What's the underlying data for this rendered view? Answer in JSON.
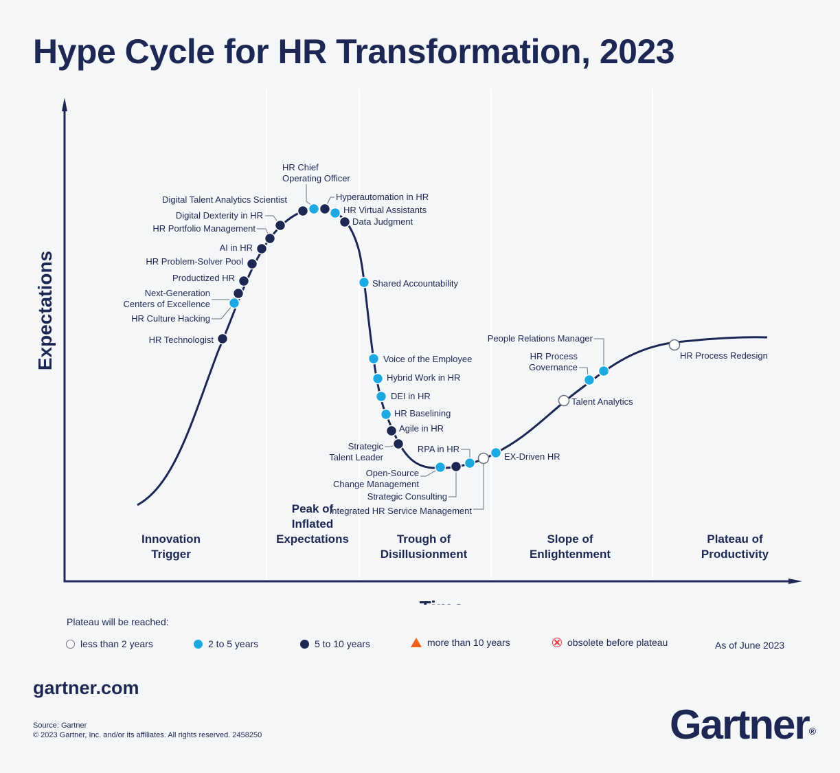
{
  "title": "Hype Cycle for HR Transformation, 2023",
  "chart_data": {
    "type": "hype-cycle",
    "title": "Hype Cycle for HR Transformation, 2023",
    "xlabel": "Time",
    "ylabel": "Expectations",
    "phases": [
      [
        "Innovation",
        "Trigger"
      ],
      [
        "Peak of",
        "Inflated",
        "Expectations"
      ],
      [
        "Trough of",
        "Disillusionment"
      ],
      [
        "Slope of",
        "Enlightenment"
      ],
      [
        "Plateau of",
        "Productivity"
      ]
    ],
    "categories": [
      "less than 2 years",
      "2 to 5 years",
      "5 to 10 years",
      "more than 10 years",
      "obsolete before plateau"
    ],
    "colors": {
      "navy": "#1d2753",
      "cyan": "#1ca9e1",
      "orange": "#f0611f",
      "red": "#e0393e",
      "white": "#ffffff"
    },
    "points": [
      {
        "name": "HR Technologist",
        "plateau": "5 to 10 years"
      },
      {
        "name": "HR Culture Hacking",
        "plateau": "2 to 5 years"
      },
      {
        "name": "Next-Generation Centers of Excellence",
        "plateau": "5 to 10 years"
      },
      {
        "name": "Productized HR",
        "plateau": "5 to 10 years"
      },
      {
        "name": "HR Problem-Solver Pool",
        "plateau": "5 to 10 years"
      },
      {
        "name": "AI in HR",
        "plateau": "5 to 10 years"
      },
      {
        "name": "HR Portfolio Management",
        "plateau": "5 to 10 years"
      },
      {
        "name": "Digital Dexterity in HR",
        "plateau": "5 to 10 years"
      },
      {
        "name": "Digital Talent Analytics Scientist",
        "plateau": "5 to 10 years"
      },
      {
        "name": "HR Chief Operating Officer",
        "plateau": "2 to 5 years"
      },
      {
        "name": "Hyperautomation in HR",
        "plateau": "5 to 10 years"
      },
      {
        "name": "HR Virtual Assistants",
        "plateau": "2 to 5 years"
      },
      {
        "name": "Data Judgment",
        "plateau": "5 to 10 years"
      },
      {
        "name": "Shared Accountability",
        "plateau": "2 to 5 years"
      },
      {
        "name": "Voice of the Employee",
        "plateau": "2 to 5 years"
      },
      {
        "name": "Hybrid Work in HR",
        "plateau": "2 to 5 years"
      },
      {
        "name": "DEI in HR",
        "plateau": "2 to 5 years"
      },
      {
        "name": "HR Baselining",
        "plateau": "2 to 5 years"
      },
      {
        "name": "Agile in HR",
        "plateau": "5 to 10 years"
      },
      {
        "name": "Strategic Talent Leader",
        "plateau": "5 to 10 years"
      },
      {
        "name": "Open-Source Change Management",
        "plateau": "2 to 5 years"
      },
      {
        "name": "Strategic Consulting",
        "plateau": "5 to 10 years"
      },
      {
        "name": "RPA in HR",
        "plateau": "2 to 5 years"
      },
      {
        "name": "Integrated HR Service Management",
        "plateau": "less than 2 years"
      },
      {
        "name": "EX-Driven HR",
        "plateau": "2 to 5 years"
      },
      {
        "name": "Talent Analytics",
        "plateau": "less than 2 years"
      },
      {
        "name": "HR Process Governance",
        "plateau": "2 to 5 years"
      },
      {
        "name": "People Relations Manager",
        "plateau": "2 to 5 years"
      },
      {
        "name": "HR Process Redesign",
        "plateau": "less than 2 years"
      }
    ]
  },
  "legend": {
    "title": "Plateau will be reached:",
    "items": [
      "less than 2 years",
      "2 to 5 years",
      "5 to 10 years",
      "more than 10 years",
      "obsolete before plateau"
    ],
    "as_of": "As of June 2023"
  },
  "footer": {
    "site": "gartner.com",
    "source": "Source: Gartner",
    "copyright": "© 2023 Gartner, Inc. and/or its affiliates. All rights reserved. 2458250",
    "brand": "Gartner",
    "brand_mark": "®"
  }
}
